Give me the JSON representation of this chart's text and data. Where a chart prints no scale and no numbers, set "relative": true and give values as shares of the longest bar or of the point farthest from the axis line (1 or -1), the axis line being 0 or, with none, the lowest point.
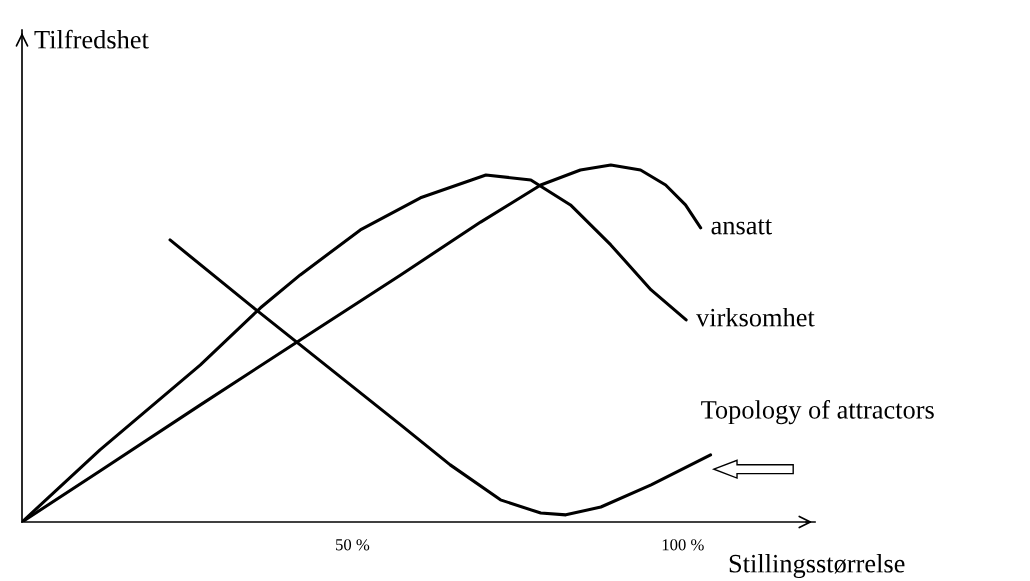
{
  "chart_data": {
    "type": "line",
    "relative": true,
    "xlabel": "Stillingsstørrelse",
    "ylabel": "Tilfredshet",
    "xlim": [
      0,
      120
    ],
    "xticks": [
      {
        "value": 50,
        "label": "50 %"
      },
      {
        "value": 100,
        "label": "100 %"
      }
    ],
    "grid": false,
    "legend": false,
    "marker": "none",
    "line_style": "solid",
    "series": [
      {
        "name": "ansatt",
        "color": "#000000",
        "x": [
          0,
          11.8,
          27.0,
          42.1,
          57.3,
          69.4,
          78.5,
          84.5,
          89.1,
          93.6,
          97.4,
          100.4,
          102.7
        ],
        "values": [
          0,
          0.143,
          0.328,
          0.51,
          0.692,
          0.84,
          0.944,
          0.986,
          1.0,
          0.986,
          0.944,
          0.888,
          0.824
        ]
      },
      {
        "name": "virksomhet",
        "color": "#000000",
        "x": [
          0,
          11.8,
          27.0,
          36.1,
          42.1,
          51.2,
          60.3,
          70.2,
          77.0,
          83.0,
          89.1,
          95.2,
          100.5
        ],
        "values": [
          0,
          0.202,
          0.44,
          0.6,
          0.692,
          0.818,
          0.908,
          0.972,
          0.958,
          0.888,
          0.776,
          0.65,
          0.566
        ]
      },
      {
        "name": "Topology of attractors",
        "color": "#000000",
        "x": [
          22.4,
          34.5,
          42.1,
          49.7,
          57.3,
          64.8,
          72.4,
          78.5,
          82.3,
          87.6,
          95.2,
          104.2
        ],
        "values": [
          0.79,
          0.608,
          0.496,
          0.384,
          0.272,
          0.16,
          0.062,
          0.025,
          0.02,
          0.042,
          0.104,
          0.188
        ]
      }
    ]
  }
}
